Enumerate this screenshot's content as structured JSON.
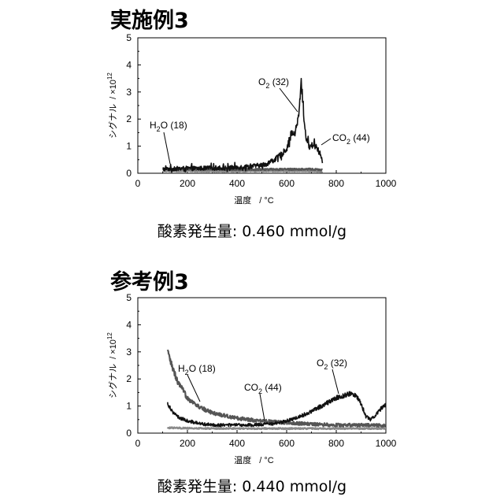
{
  "charts": [
    {
      "title": "実施例3",
      "result_text": "酸素発生量: 0.460 mmol/g",
      "chart_data": {
        "type": "line",
        "xlabel_main": "温度",
        "xlabel_unit": "/ °C",
        "ylabel_main": "シグナル",
        "ylabel_unit": "/ ×10",
        "ylabel_exp": "12",
        "xlim": [
          0,
          1000
        ],
        "ylim": [
          0,
          5
        ],
        "xticks": [
          0,
          200,
          400,
          600,
          800,
          1000
        ],
        "yticks": [
          0,
          1,
          2,
          3,
          4,
          5
        ],
        "series": [
          {
            "label_main": "O",
            "label_sub": "2",
            "label_mass": " (32)",
            "color": "#111111",
            "noise": 0.12,
            "noise_spikes": true,
            "x": [
              100,
              150,
              200,
              250,
              300,
              350,
              400,
              450,
              500,
              520,
              540,
              560,
              580,
              600,
              610,
              620,
              630,
              640,
              650,
              655,
              660,
              665,
              670,
              675,
              680,
              690,
              700,
              710,
              720,
              730,
              740,
              745
            ],
            "y": [
              0.15,
              0.17,
              0.18,
              0.18,
              0.2,
              0.2,
              0.22,
              0.25,
              0.3,
              0.35,
              0.45,
              0.55,
              0.7,
              0.9,
              1.2,
              1.5,
              1.4,
              1.7,
              2.2,
              3.0,
              3.4,
              2.8,
              2.0,
              1.5,
              1.3,
              1.0,
              1.0,
              1.1,
              1.0,
              0.8,
              0.6,
              0.3
            ]
          },
          {
            "label_main": "H",
            "label_sub": "2",
            "label_mass": "O (18)",
            "color": "#555555",
            "noise": 0.05,
            "noise_spikes": false,
            "x": [
              100,
              200,
              300,
              400,
              500,
              600,
              700,
              745
            ],
            "y": [
              0.15,
              0.16,
              0.15,
              0.14,
              0.14,
              0.15,
              0.15,
              0.12
            ]
          },
          {
            "label_main": "CO",
            "label_sub": "2",
            "label_mass": " (44)",
            "color": "#8a8a8a",
            "noise": 0.03,
            "noise_spikes": false,
            "x": [
              100,
              200,
              300,
              400,
              500,
              600,
              700,
              745
            ],
            "y": [
              0.08,
              0.08,
              0.07,
              0.07,
              0.08,
              0.08,
              0.08,
              0.06
            ]
          }
        ]
      }
    },
    {
      "title": "参考例3",
      "result_text": "酸素発生量: 0.440 mmol/g",
      "chart_data": {
        "type": "line",
        "xlabel_main": "温度",
        "xlabel_unit": "/ °C",
        "ylabel_main": "シグナル",
        "ylabel_unit": "/ ×10",
        "ylabel_exp": "12",
        "xlim": [
          0,
          1000
        ],
        "ylim": [
          0,
          5
        ],
        "xticks": [
          0,
          200,
          400,
          600,
          800,
          1000
        ],
        "yticks": [
          0,
          1,
          2,
          3,
          4,
          5
        ],
        "series": [
          {
            "label_main": "O",
            "label_sub": "2",
            "label_mass": " (32)",
            "color": "#111111",
            "noise": 0.08,
            "noise_spikes": false,
            "x": [
              120,
              140,
              160,
              200,
              250,
              300,
              350,
              400,
              450,
              500,
              550,
              600,
              650,
              700,
              750,
              800,
              850,
              880,
              900,
              920,
              940,
              960,
              980,
              1000
            ],
            "y": [
              1.1,
              0.8,
              0.6,
              0.45,
              0.35,
              0.3,
              0.3,
              0.3,
              0.3,
              0.32,
              0.35,
              0.45,
              0.6,
              0.8,
              1.05,
              1.3,
              1.45,
              1.4,
              1.1,
              0.6,
              0.5,
              0.7,
              0.9,
              1.05
            ]
          },
          {
            "label_main": "H",
            "label_sub": "2",
            "label_mass": "O (18)",
            "color": "#555555",
            "noise": 0.08,
            "noise_spikes": false,
            "x": [
              120,
              140,
              160,
              180,
              200,
              250,
              300,
              350,
              400,
              500,
              600,
              700,
              800,
              900,
              1000
            ],
            "y": [
              3.0,
              2.4,
              1.9,
              1.6,
              1.3,
              0.95,
              0.75,
              0.65,
              0.55,
              0.45,
              0.38,
              0.33,
              0.3,
              0.3,
              0.28
            ]
          },
          {
            "label_main": "CO",
            "label_sub": "2",
            "label_mass": " (44)",
            "color": "#8a8a8a",
            "noise": 0.04,
            "noise_spikes": false,
            "x": [
              120,
              200,
              300,
              400,
              500,
              600,
              700,
              800,
              900,
              1000
            ],
            "y": [
              0.2,
              0.18,
              0.17,
              0.17,
              0.17,
              0.17,
              0.17,
              0.17,
              0.17,
              0.17
            ]
          }
        ]
      }
    }
  ]
}
